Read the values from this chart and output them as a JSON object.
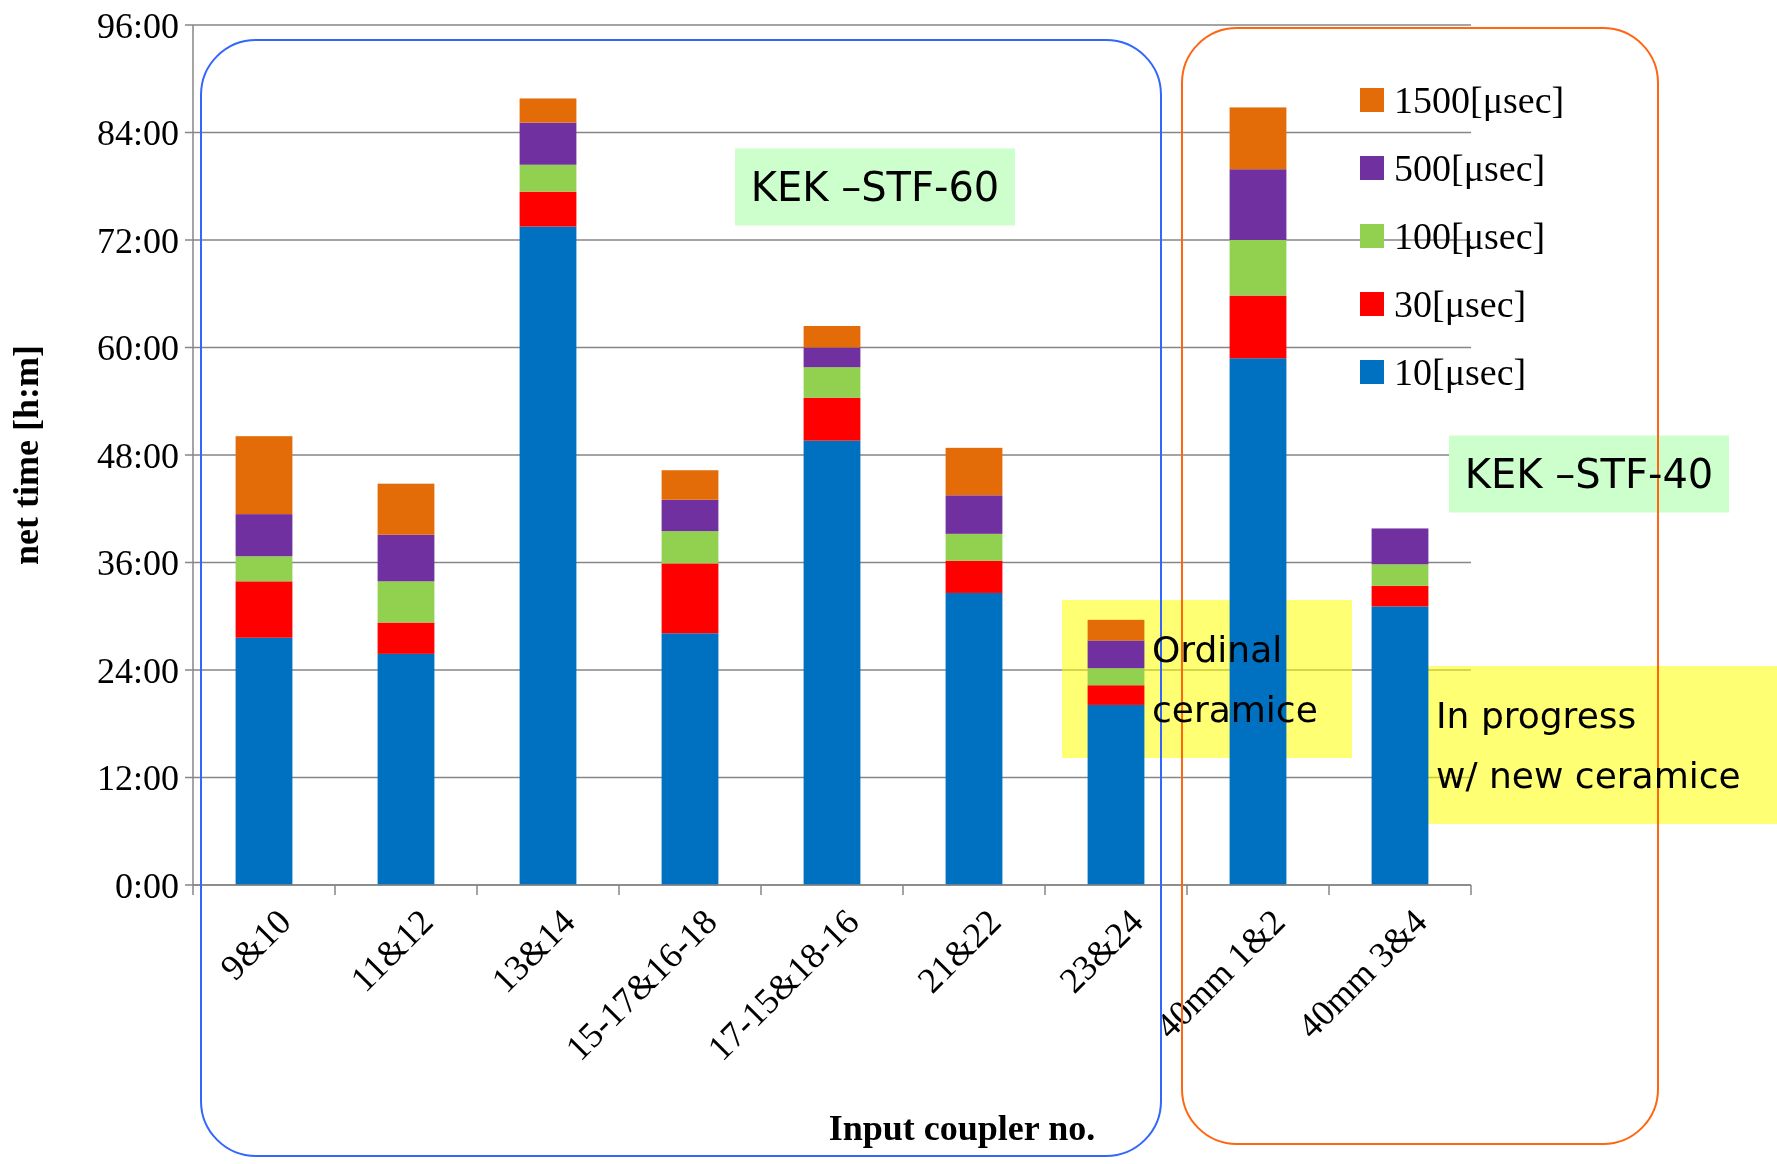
{
  "chart_data": {
    "type": "bar",
    "stacked": true,
    "xlabel": "Input coupler no.",
    "ylabel": "net time [h:m]",
    "categories": [
      "9&10",
      "11&12",
      "13&14",
      "15-17&16-18",
      "17-15&18-16",
      "21&22",
      "23&24",
      "40mm 1&2",
      "40mm 3&4"
    ],
    "series": [
      {
        "name": "10[μsec]",
        "color": "#0070c0",
        "values": [
          27.6,
          25.8,
          73.5,
          28.1,
          49.6,
          32.6,
          20.1,
          58.8,
          31.1
        ]
      },
      {
        "name": "30[μsec]",
        "color": "#ff0000",
        "values": [
          6.3,
          3.5,
          3.9,
          7.8,
          4.8,
          3.6,
          2.2,
          7.0,
          2.3
        ]
      },
      {
        "name": "100[μsec]",
        "color": "#92d050",
        "values": [
          2.8,
          4.6,
          3.0,
          3.6,
          3.4,
          3.0,
          1.9,
          6.2,
          2.4
        ]
      },
      {
        "name": "500[μsec]",
        "color": "#7030a0",
        "values": [
          4.7,
          5.2,
          4.7,
          3.5,
          2.2,
          4.3,
          3.1,
          7.9,
          4.0
        ]
      },
      {
        "name": "1500[μsec]",
        "color": "#e36c09",
        "values": [
          8.7,
          5.7,
          2.7,
          3.3,
          2.4,
          5.3,
          2.3,
          6.9,
          0
        ]
      }
    ],
    "ylim": [
      0,
      96
    ],
    "yticks": [
      {
        "value": 0,
        "label": "0:00"
      },
      {
        "value": 12,
        "label": "12:00"
      },
      {
        "value": 24,
        "label": "24:00"
      },
      {
        "value": 36,
        "label": "36:00"
      },
      {
        "value": 48,
        "label": "48:00"
      },
      {
        "value": 60,
        "label": "60:00"
      },
      {
        "value": 72,
        "label": "72:00"
      },
      {
        "value": 84,
        "label": "84:00"
      },
      {
        "value": 96,
        "label": "96:00"
      }
    ],
    "grid": "y",
    "legend": "top right",
    "annotations": [
      "KEK –STF-60",
      "KEK –STF-40",
      "Ordinal\nceramice",
      "In progress\nw/ new ceramice"
    ]
  }
}
